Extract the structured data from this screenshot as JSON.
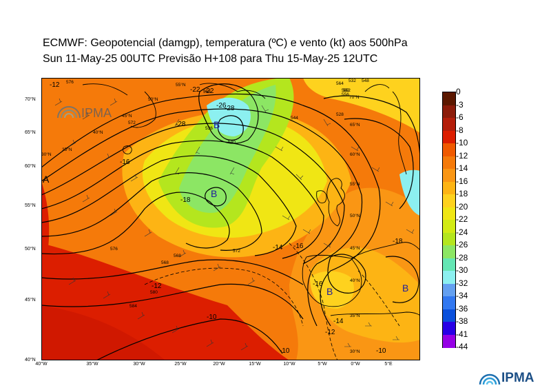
{
  "title": {
    "line1": "ECMWF:  Geopotencial (damgp), temperatura (ºC) e vento (kt) aos 500hPa",
    "line2": "Sun 11-May-25 00UTC Previsão H+108 para Thu 15-May-25 12UTC"
  },
  "lat_labels": [
    "70°N",
    "65°N",
    "60°N",
    "55°N",
    "50°N",
    "45°N",
    "40°N"
  ],
  "lon_labels": [
    "40°W",
    "35°W",
    "30°W",
    "25°W",
    "20°W",
    "15°W",
    "10°W",
    "5°W",
    "0°W",
    "5°E"
  ],
  "inner_lat_labels": [
    "55°N",
    "50°N",
    "45°N",
    "40°N",
    "35°N",
    "30°N",
    "70°N",
    "65°N",
    "60°N",
    "55°N",
    "50°N",
    "45°N",
    "40°N",
    "35°N",
    "30°N"
  ],
  "pressure_letters": [
    "A",
    "B",
    "B",
    "B",
    "B"
  ],
  "contour_labels": [
    "576",
    "572",
    "568",
    "564",
    "560",
    "556",
    "552",
    "548",
    "544",
    "540",
    "536",
    "532",
    "528",
    "568",
    "584",
    "580",
    "576",
    "572",
    "568"
  ],
  "temp_labels": [
    "-12",
    "-26",
    "-28",
    "-28",
    "-22",
    "-16",
    "-18",
    "-12",
    "-10",
    "-16",
    "-14",
    "-12",
    "-10",
    "-10",
    "-14",
    "-16",
    "-18",
    "-22"
  ],
  "legend": {
    "values": [
      "0",
      "-3",
      "-6",
      "-8",
      "-10",
      "-12",
      "-14",
      "-16",
      "-18",
      "-20",
      "-22",
      "-24",
      "-26",
      "-28",
      "-30",
      "-32",
      "-34",
      "-36",
      "-38",
      "-41",
      "-44"
    ],
    "colors": [
      "#5c1800",
      "#8c1c0a",
      "#b41e0a",
      "#dc1e00",
      "#f05a00",
      "#f57a0a",
      "#fa9614",
      "#fdb414",
      "#fed21e",
      "#f0e614",
      "#d2eb14",
      "#b4e61e",
      "#8ce664",
      "#64e6b4",
      "#8cf0f0",
      "#64a0f0",
      "#3278f0",
      "#0a50dc",
      "#2800e6",
      "#9600e6",
      "#e61ef0"
    ]
  },
  "logo": {
    "text": "IPMA",
    "watermark": "IPMA"
  }
}
